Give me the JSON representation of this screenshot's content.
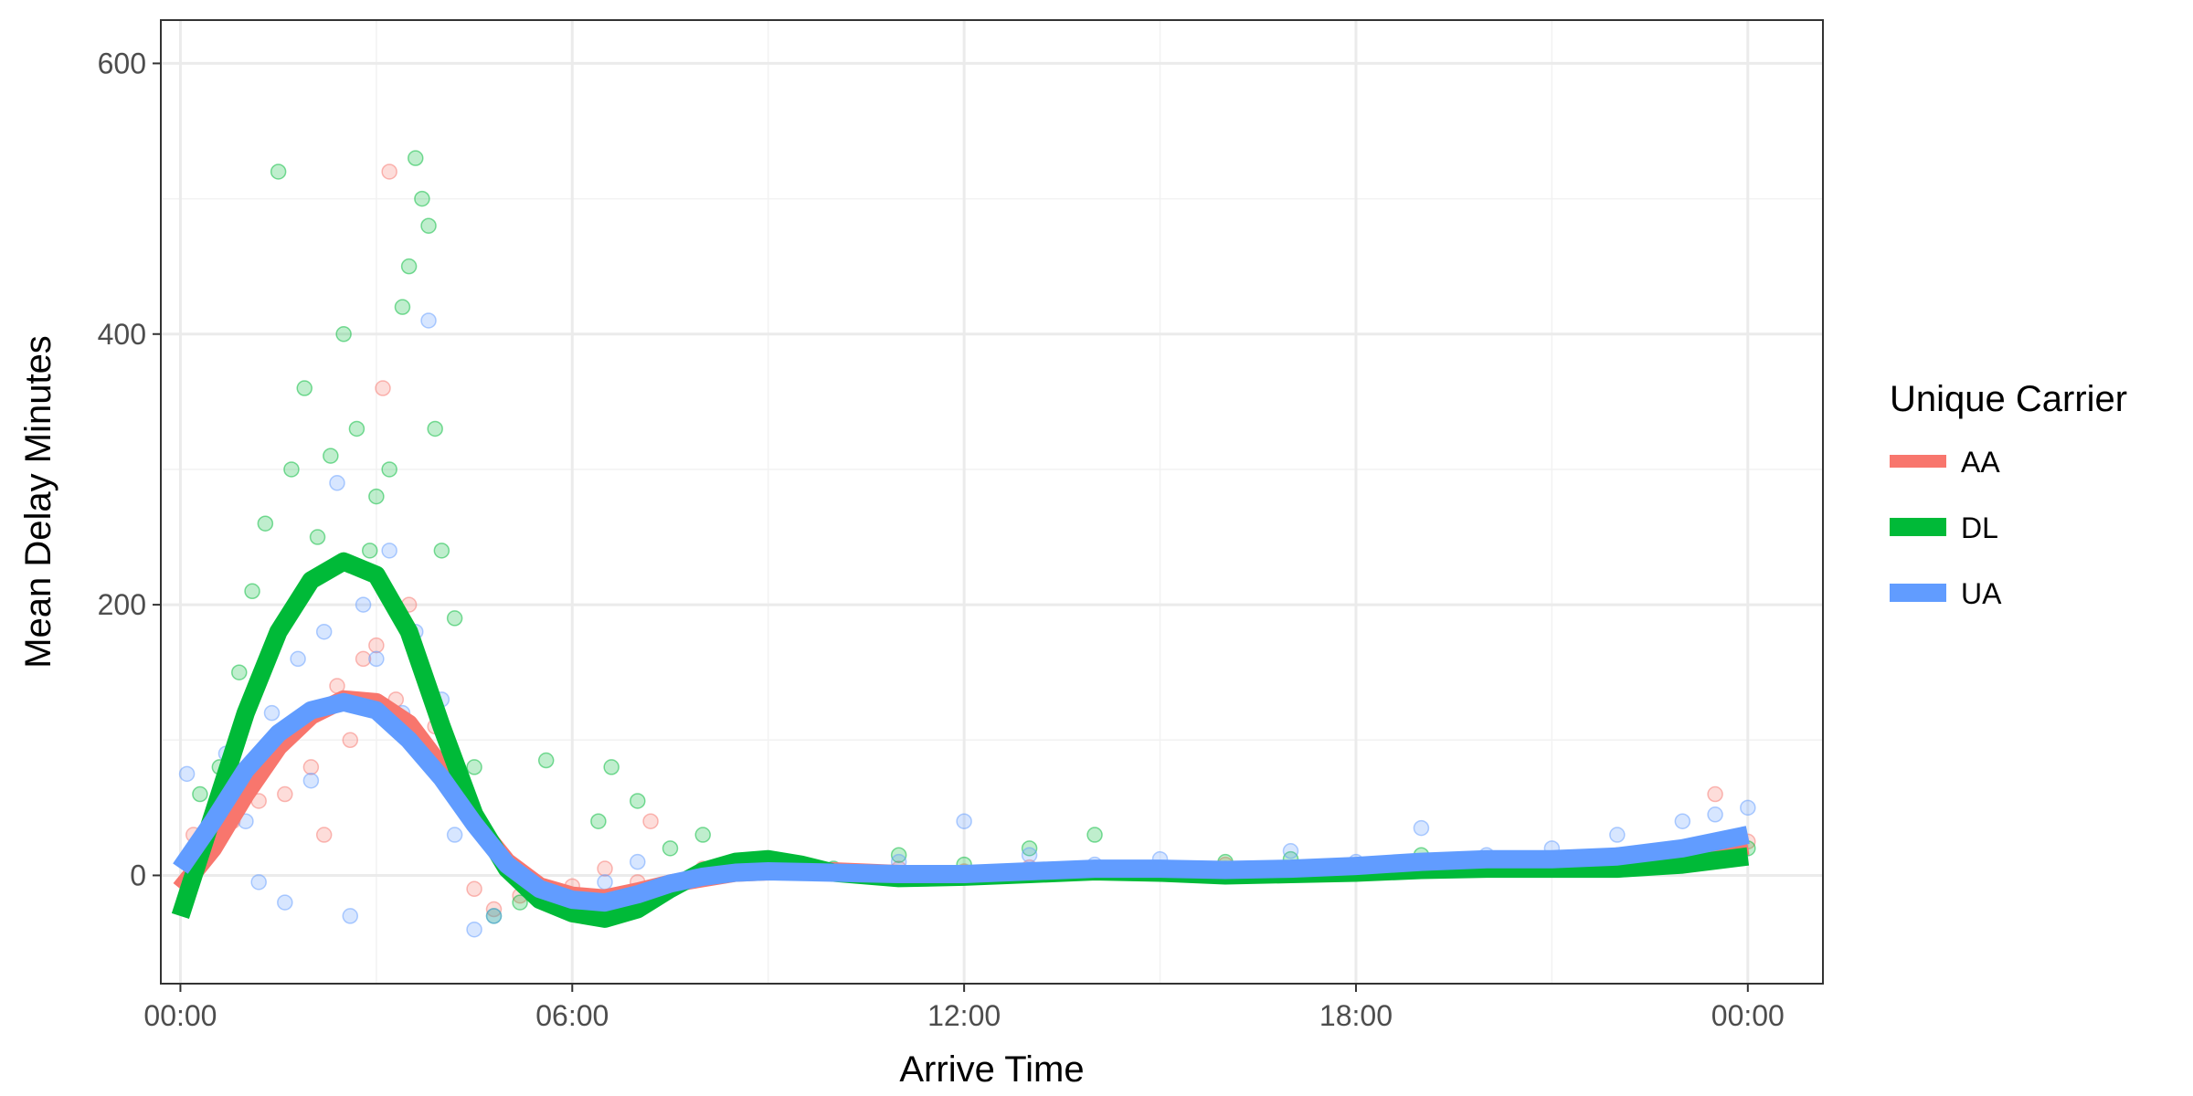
{
  "chart_data": {
    "type": "scatter",
    "title": "",
    "xlabel": "Arrive Time",
    "ylabel": "Mean Delay Minutes",
    "xlim_hours": [
      -0.3,
      25.15
    ],
    "ylim": [
      -80,
      632
    ],
    "grid": true,
    "x_ticks": [
      {
        "hour": 0,
        "label": "00:00"
      },
      {
        "hour": 6,
        "label": "06:00"
      },
      {
        "hour": 12,
        "label": "12:00"
      },
      {
        "hour": 18,
        "label": "18:00"
      },
      {
        "hour": 24,
        "label": "00:00"
      }
    ],
    "y_ticks": [
      0,
      200,
      400,
      600
    ],
    "legend": {
      "title": "Unique Carrier",
      "placement": "right",
      "entries": [
        "AA",
        "DL",
        "UA"
      ]
    },
    "colors": {
      "AA": "#F8766D",
      "DL": "#00BA38",
      "UA": "#619CFF"
    },
    "series": [
      {
        "name": "AA",
        "smooth": [
          [
            0,
            -10
          ],
          [
            0.5,
            20
          ],
          [
            1,
            60
          ],
          [
            1.5,
            95
          ],
          [
            2,
            118
          ],
          [
            2.5,
            130
          ],
          [
            3,
            128
          ],
          [
            3.5,
            112
          ],
          [
            4,
            80
          ],
          [
            4.5,
            40
          ],
          [
            5,
            10
          ],
          [
            5.5,
            -8
          ],
          [
            6,
            -15
          ],
          [
            6.5,
            -17
          ],
          [
            7,
            -12
          ],
          [
            7.5,
            -6
          ],
          [
            8,
            -2
          ],
          [
            8.5,
            2
          ],
          [
            9,
            3
          ],
          [
            10,
            3
          ],
          [
            11,
            1
          ],
          [
            12,
            0
          ],
          [
            13,
            2
          ],
          [
            14,
            4
          ],
          [
            15,
            4
          ],
          [
            16,
            3
          ],
          [
            17,
            3
          ],
          [
            18,
            5
          ],
          [
            19,
            8
          ],
          [
            20,
            9
          ],
          [
            21,
            9
          ],
          [
            22,
            10
          ],
          [
            23,
            14
          ],
          [
            24,
            22
          ]
        ],
        "points": [
          [
            0.2,
            30
          ],
          [
            0.4,
            15
          ],
          [
            0.6,
            50
          ],
          [
            0.8,
            40
          ],
          [
            1,
            70
          ],
          [
            1.2,
            55
          ],
          [
            1.4,
            90
          ],
          [
            1.6,
            60
          ],
          [
            1.8,
            110
          ],
          [
            2,
            80
          ],
          [
            2.2,
            30
          ],
          [
            2.4,
            140
          ],
          [
            2.6,
            100
          ],
          [
            2.8,
            160
          ],
          [
            3,
            170
          ],
          [
            3.1,
            360
          ],
          [
            3.2,
            520
          ],
          [
            3.3,
            130
          ],
          [
            3.5,
            200
          ],
          [
            3.7,
            150
          ],
          [
            3.9,
            110
          ],
          [
            4.2,
            60
          ],
          [
            4.5,
            -10
          ],
          [
            4.8,
            -25
          ],
          [
            5.2,
            -15
          ],
          [
            5.6,
            -20
          ],
          [
            6,
            -8
          ],
          [
            6.5,
            5
          ],
          [
            7,
            -5
          ],
          [
            7.2,
            40
          ],
          [
            8,
            5
          ],
          [
            9,
            8
          ],
          [
            10,
            2
          ],
          [
            11,
            5
          ],
          [
            12,
            3
          ],
          [
            13,
            6
          ],
          [
            14,
            4
          ],
          [
            15,
            2
          ],
          [
            16,
            8
          ],
          [
            17,
            3
          ],
          [
            18,
            6
          ],
          [
            19,
            10
          ],
          [
            20,
            7
          ],
          [
            21,
            12
          ],
          [
            22,
            15
          ],
          [
            23,
            20
          ],
          [
            23.5,
            60
          ],
          [
            24,
            25
          ]
        ]
      },
      {
        "name": "DL",
        "smooth": [
          [
            0,
            -30
          ],
          [
            0.5,
            45
          ],
          [
            1,
            120
          ],
          [
            1.5,
            180
          ],
          [
            2,
            218
          ],
          [
            2.5,
            232
          ],
          [
            3,
            222
          ],
          [
            3.5,
            180
          ],
          [
            4,
            110
          ],
          [
            4.5,
            45
          ],
          [
            5,
            5
          ],
          [
            5.5,
            -18
          ],
          [
            6,
            -28
          ],
          [
            6.5,
            -32
          ],
          [
            7,
            -25
          ],
          [
            7.5,
            -10
          ],
          [
            8,
            3
          ],
          [
            8.5,
            10
          ],
          [
            9,
            12
          ],
          [
            9.5,
            8
          ],
          [
            10,
            2
          ],
          [
            11,
            -2
          ],
          [
            12,
            -1
          ],
          [
            13,
            1
          ],
          [
            14,
            3
          ],
          [
            15,
            2
          ],
          [
            16,
            0
          ],
          [
            17,
            1
          ],
          [
            18,
            2
          ],
          [
            19,
            4
          ],
          [
            20,
            5
          ],
          [
            21,
            5
          ],
          [
            22,
            5
          ],
          [
            23,
            8
          ],
          [
            24,
            14
          ]
        ],
        "points": [
          [
            0.3,
            60
          ],
          [
            0.6,
            80
          ],
          [
            0.9,
            150
          ],
          [
            1.1,
            210
          ],
          [
            1.3,
            260
          ],
          [
            1.5,
            520
          ],
          [
            1.7,
            300
          ],
          [
            1.9,
            360
          ],
          [
            2.1,
            250
          ],
          [
            2.3,
            310
          ],
          [
            2.5,
            400
          ],
          [
            2.7,
            330
          ],
          [
            2.9,
            240
          ],
          [
            3,
            280
          ],
          [
            3.2,
            300
          ],
          [
            3.4,
            420
          ],
          [
            3.5,
            450
          ],
          [
            3.6,
            530
          ],
          [
            3.7,
            500
          ],
          [
            3.8,
            480
          ],
          [
            3.9,
            330
          ],
          [
            4,
            240
          ],
          [
            4.2,
            190
          ],
          [
            4.5,
            80
          ],
          [
            4.8,
            -30
          ],
          [
            5.2,
            -20
          ],
          [
            5.6,
            85
          ],
          [
            6.4,
            40
          ],
          [
            6.6,
            80
          ],
          [
            7,
            55
          ],
          [
            7.5,
            20
          ],
          [
            8,
            30
          ],
          [
            9,
            10
          ],
          [
            10,
            5
          ],
          [
            11,
            15
          ],
          [
            12,
            8
          ],
          [
            13,
            20
          ],
          [
            14,
            30
          ],
          [
            15,
            5
          ],
          [
            16,
            10
          ],
          [
            17,
            12
          ],
          [
            18,
            3
          ],
          [
            19,
            15
          ],
          [
            20,
            8
          ],
          [
            21,
            5
          ],
          [
            22,
            10
          ],
          [
            23,
            18
          ],
          [
            24,
            20
          ]
        ]
      },
      {
        "name": "UA",
        "smooth": [
          [
            0,
            5
          ],
          [
            0.5,
            40
          ],
          [
            1,
            78
          ],
          [
            1.5,
            105
          ],
          [
            2,
            122
          ],
          [
            2.5,
            128
          ],
          [
            3,
            122
          ],
          [
            3.5,
            100
          ],
          [
            4,
            72
          ],
          [
            4.5,
            38
          ],
          [
            5,
            8
          ],
          [
            5.5,
            -10
          ],
          [
            6,
            -18
          ],
          [
            6.5,
            -20
          ],
          [
            7,
            -14
          ],
          [
            7.5,
            -6
          ],
          [
            8,
            -1
          ],
          [
            8.5,
            2
          ],
          [
            9,
            3
          ],
          [
            10,
            2
          ],
          [
            11,
            1
          ],
          [
            12,
            1
          ],
          [
            13,
            3
          ],
          [
            14,
            5
          ],
          [
            15,
            5
          ],
          [
            16,
            4
          ],
          [
            17,
            5
          ],
          [
            18,
            7
          ],
          [
            19,
            10
          ],
          [
            20,
            12
          ],
          [
            21,
            12
          ],
          [
            22,
            14
          ],
          [
            23,
            20
          ],
          [
            24,
            30
          ]
        ],
        "points": [
          [
            0.1,
            75
          ],
          [
            0.4,
            20
          ],
          [
            0.7,
            90
          ],
          [
            1,
            40
          ],
          [
            1.2,
            -5
          ],
          [
            1.4,
            120
          ],
          [
            1.6,
            -20
          ],
          [
            1.8,
            160
          ],
          [
            2,
            70
          ],
          [
            2.2,
            180
          ],
          [
            2.4,
            290
          ],
          [
            2.6,
            -30
          ],
          [
            2.8,
            200
          ],
          [
            3,
            160
          ],
          [
            3.2,
            240
          ],
          [
            3.4,
            120
          ],
          [
            3.6,
            180
          ],
          [
            3.8,
            410
          ],
          [
            4,
            130
          ],
          [
            4.2,
            30
          ],
          [
            4.5,
            -40
          ],
          [
            4.8,
            -30
          ],
          [
            5.3,
            -10
          ],
          [
            5.8,
            -15
          ],
          [
            6.5,
            -5
          ],
          [
            7,
            10
          ],
          [
            8,
            0
          ],
          [
            9,
            5
          ],
          [
            10,
            3
          ],
          [
            11,
            10
          ],
          [
            12,
            40
          ],
          [
            13,
            15
          ],
          [
            14,
            8
          ],
          [
            15,
            12
          ],
          [
            16,
            5
          ],
          [
            17,
            18
          ],
          [
            18,
            10
          ],
          [
            19,
            35
          ],
          [
            20,
            15
          ],
          [
            21,
            20
          ],
          [
            22,
            30
          ],
          [
            23,
            40
          ],
          [
            23.5,
            45
          ],
          [
            24,
            50
          ]
        ]
      }
    ]
  }
}
